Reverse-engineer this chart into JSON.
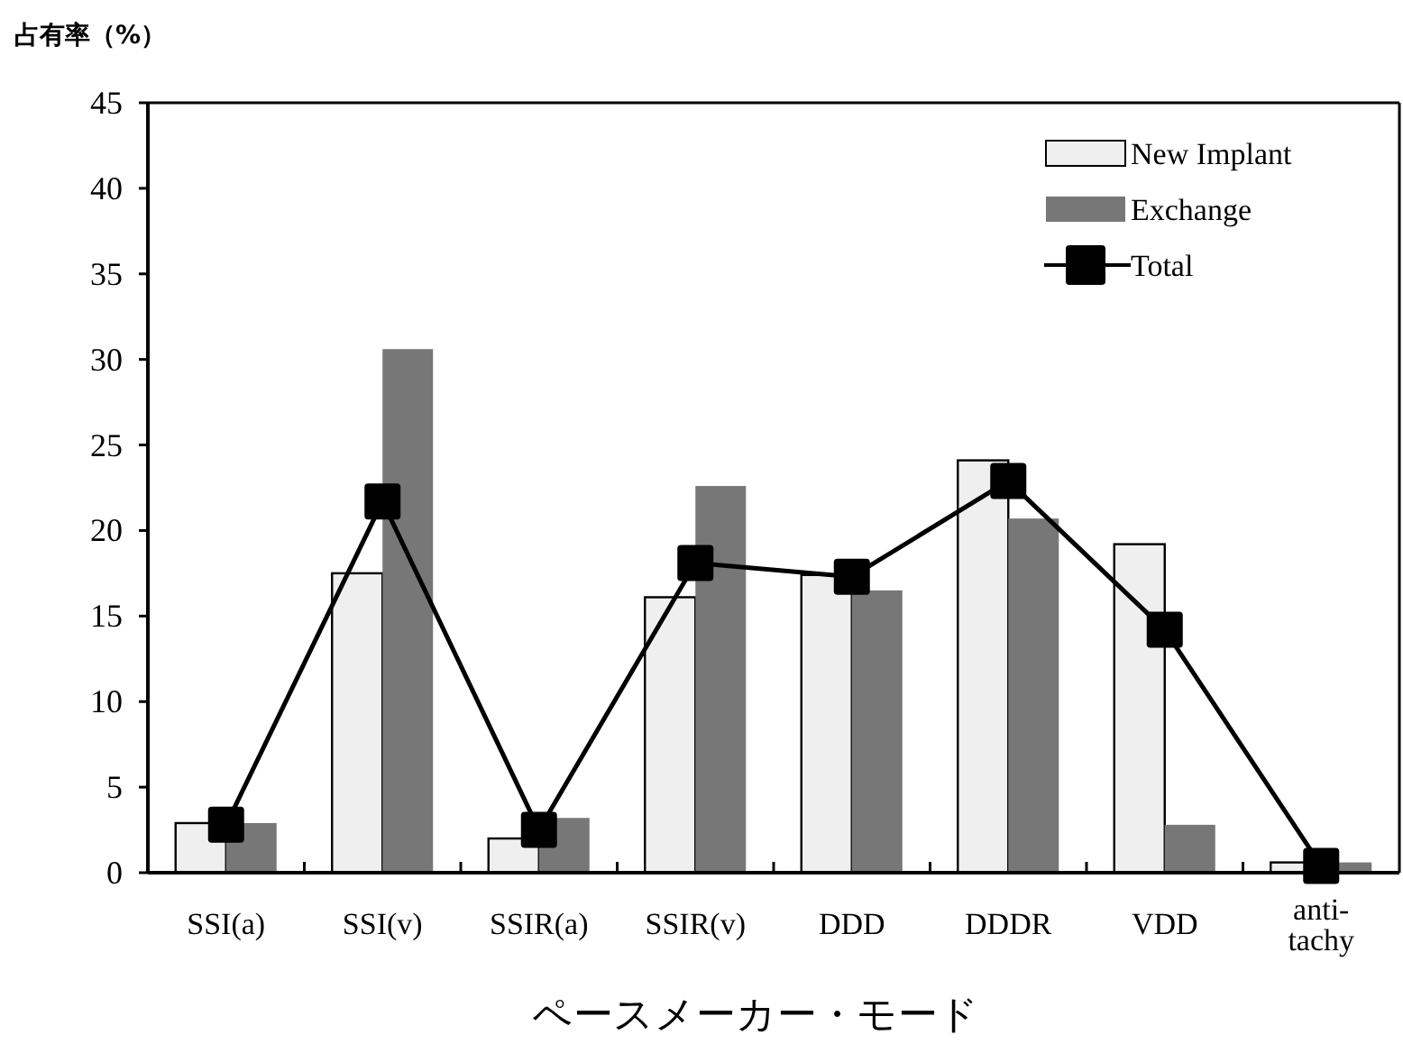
{
  "chart_data": {
    "type": "bar",
    "ylabel": "占有率（%）",
    "xlabel": "ペースメーカー・モード",
    "categories": [
      "SSI(a)",
      "SSI(v)",
      "SSIR(a)",
      "SSIR(v)",
      "DDD",
      "DDDR",
      "VDD",
      "anti-tachy"
    ],
    "series": [
      {
        "name": "New Implant",
        "color": "#efefef",
        "values": [
          2.9,
          17.5,
          2.0,
          16.1,
          17.4,
          24.1,
          19.2,
          0.6
        ]
      },
      {
        "name": "Exchange",
        "color": "#777777",
        "values": [
          2.9,
          30.6,
          3.2,
          22.6,
          16.5,
          20.7,
          2.8,
          0.6
        ]
      },
      {
        "name": "Total",
        "type": "line",
        "color": "#000000",
        "values": [
          2.8,
          21.7,
          2.5,
          18.1,
          17.3,
          22.9,
          14.2,
          0.4
        ]
      }
    ],
    "ylim": [
      0,
      45
    ],
    "yticks": [
      0,
      5,
      10,
      15,
      20,
      25,
      30,
      35,
      40,
      45
    ],
    "legend": "top right",
    "marker": "square",
    "line_style": "solid"
  }
}
